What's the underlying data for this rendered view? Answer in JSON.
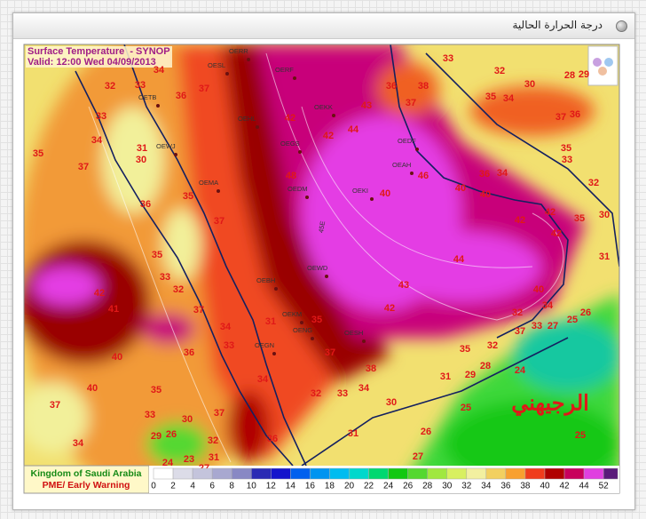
{
  "header": {
    "title": "درجة الحرارة الحالية"
  },
  "map": {
    "title": "Surface Temperature  - SYNOP",
    "valid": "Valid: 12:00 Wed 04/09/2013",
    "watermark": "الرجيهني",
    "grid_labels": [
      "45E"
    ],
    "stations": [
      "OERR",
      "OESL",
      "OERF",
      "OEKK",
      "OETB",
      "OEHL",
      "OEGS",
      "OEWJ",
      "OEDF",
      "OEAH",
      "OEMA",
      "OEDM",
      "OEKI",
      "OEWD",
      "OEBH",
      "OEKM",
      "OENG",
      "OESH",
      "OEGN"
    ],
    "temperature_labels": [
      34,
      32,
      33,
      36,
      37,
      33,
      34,
      35,
      31,
      30,
      37,
      35,
      36,
      37,
      35,
      33,
      32,
      42,
      41,
      37,
      34,
      33,
      36,
      40,
      40,
      35,
      37,
      34,
      33,
      30,
      37,
      34,
      29,
      26,
      32,
      36,
      24,
      23,
      31,
      27,
      31,
      35,
      37,
      38,
      32,
      33,
      34,
      30,
      31,
      27,
      26,
      25,
      31,
      29,
      28,
      35,
      32,
      24,
      25,
      42,
      43,
      44,
      42,
      42,
      42,
      40,
      34,
      32,
      25,
      26,
      27,
      33,
      37,
      35,
      30,
      31,
      32,
      33,
      35,
      34,
      36,
      40,
      40,
      40,
      42,
      44,
      43,
      42,
      48,
      46,
      36,
      37,
      38,
      33,
      32,
      30,
      35,
      34,
      37,
      36,
      28,
      29
    ]
  },
  "legend": {
    "ticks": [
      0,
      2,
      4,
      6,
      8,
      10,
      12,
      14,
      16,
      18,
      20,
      22,
      24,
      26,
      28,
      30,
      32,
      34,
      36,
      38,
      40,
      42,
      44,
      52
    ],
    "colors": [
      "#ffffff",
      "#dcdce8",
      "#c4c4dc",
      "#a8a8d0",
      "#8888c4",
      "#2a2ab4",
      "#1414cc",
      "#0060ee",
      "#0094f0",
      "#00bcf0",
      "#00d8cc",
      "#00d870",
      "#12c812",
      "#54d830",
      "#a0e840",
      "#d8f060",
      "#f2f0a0",
      "#f2d060",
      "#f8a030",
      "#f03c1c",
      "#b00000",
      "#c8005c",
      "#e040e0",
      "#5a1a7a"
    ]
  },
  "footer": {
    "organization": "Kingdom of Saudi Arabia",
    "department": "PME/ Early Warning"
  }
}
